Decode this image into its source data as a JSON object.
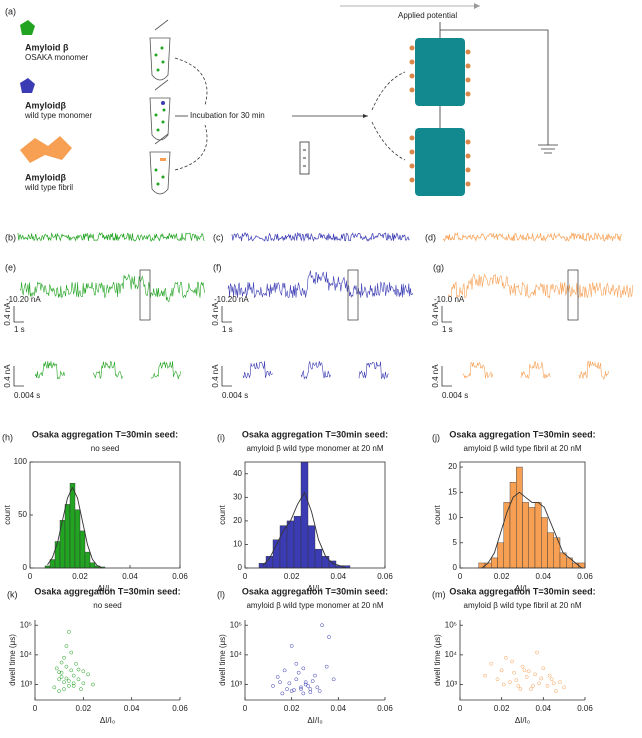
{
  "schematic": {
    "label": "(a)",
    "molecules": [
      {
        "name": "Amyloid β",
        "desc": "OSAKA monomer"
      },
      {
        "name": "Amyloidβ",
        "desc": "wild type monomer"
      },
      {
        "name": "Amyloidβ",
        "desc": "wild type fibril"
      }
    ],
    "incubation": "Incubation for 30 min",
    "potential": "Applied potential"
  },
  "traces": [
    {
      "label": "(b)",
      "color": "#22a322"
    },
    {
      "label": "(c)",
      "color": "#3b3bb3"
    },
    {
      "label": "(d)",
      "color": "#f7a054"
    }
  ],
  "events": [
    {
      "label": "(e)",
      "color": "#22a322",
      "baseline": "-10.20 nA",
      "current_scale": "0.4 nA",
      "time_scale": "1 s",
      "zoom_current_scale": "0.4 nA",
      "zoom_time_scale": "0.004 s"
    },
    {
      "label": "(f)",
      "color": "#3b3bb3",
      "baseline": "-10.20 nA",
      "current_scale": "0.4 nA",
      "time_scale": "1 s",
      "zoom_current_scale": "0.4 nA",
      "zoom_time_scale": "0.004 s"
    },
    {
      "label": "(g)",
      "color": "#f7a054",
      "baseline": "-10.0 nA",
      "current_scale": "0.4 nA",
      "time_scale": "1 s",
      "zoom_current_scale": "0.4 nA",
      "zoom_time_scale": "0.004 s"
    }
  ],
  "chart_data": [
    {
      "type": "histogram",
      "label": "(h)",
      "title": "Osaka aggregation T=30min seed:",
      "subtitle": "no seed",
      "x_label": "ΔI/I₀",
      "y_label": "count",
      "color": "#22a322",
      "bins": [
        0.006,
        0.008,
        0.01,
        0.012,
        0.014,
        0.016,
        0.018,
        0.02,
        0.022,
        0.024,
        0.026,
        0.028,
        0.03
      ],
      "counts": [
        2,
        8,
        25,
        45,
        60,
        80,
        55,
        35,
        15,
        5,
        2,
        1
      ],
      "fit": [
        3,
        10,
        24,
        45,
        66,
        76,
        66,
        44,
        22,
        8,
        2,
        0
      ],
      "xlim": [
        0,
        0.06
      ],
      "xticks": [
        0,
        0.02,
        0.04,
        0.06
      ],
      "ylim": [
        0,
        100
      ],
      "yticks": [
        0,
        50,
        100
      ]
    },
    {
      "type": "histogram",
      "label": "(i)",
      "title": "Osaka aggregation T=30min seed:",
      "subtitle": "amyloid β wild type monomer at 20 nM",
      "x_label": "ΔI/I₀",
      "y_label": "count",
      "color": "#3b3bb3",
      "bins": [
        0.006,
        0.009,
        0.012,
        0.015,
        0.018,
        0.021,
        0.024,
        0.027,
        0.03,
        0.033,
        0.036,
        0.039,
        0.042,
        0.045
      ],
      "counts": [
        2,
        5,
        12,
        18,
        20,
        22,
        45,
        18,
        8,
        5,
        3,
        1,
        1
      ],
      "fit": [
        1,
        4,
        10,
        16,
        20,
        27,
        32,
        24,
        12,
        5,
        2,
        1,
        0
      ],
      "xlim": [
        0,
        0.06
      ],
      "xticks": [
        0,
        0.02,
        0.04,
        0.06
      ],
      "ylim": [
        0,
        45
      ],
      "yticks": [
        0,
        10,
        20,
        30,
        40
      ]
    },
    {
      "type": "histogram",
      "label": "(j)",
      "title": "Osaka aggregation T=30min seed:",
      "subtitle": "amyloid β wild type fibril at 20 nM",
      "x_label": "ΔI/I₀",
      "y_label": "count",
      "color": "#f7a054",
      "bins": [
        0.009,
        0.012,
        0.015,
        0.018,
        0.021,
        0.024,
        0.027,
        0.03,
        0.033,
        0.036,
        0.039,
        0.042,
        0.045,
        0.048,
        0.051,
        0.054,
        0.057,
        0.06
      ],
      "counts": [
        1,
        1,
        2,
        5,
        13,
        17,
        20,
        13,
        12,
        13,
        10,
        7,
        6,
        3,
        2,
        1,
        1
      ],
      "fit": [
        0,
        1,
        3,
        7,
        11,
        14,
        15,
        14,
        13,
        13,
        12,
        9,
        6,
        3,
        2,
        1,
        0
      ],
      "xlim": [
        0,
        0.06
      ],
      "xticks": [
        0,
        0.02,
        0.04,
        0.06
      ],
      "ylim": [
        0,
        21
      ],
      "yticks": [
        0,
        5,
        10,
        15,
        20
      ]
    },
    {
      "type": "scatter",
      "label": "(k)",
      "title": "Osaka aggregation T=30min seed:",
      "subtitle": "no seed",
      "x_label": "ΔI/I₀",
      "y_label": "dwell time (μs)",
      "color": "#22a322",
      "log_y": true,
      "x": [
        0.008,
        0.01,
        0.011,
        0.012,
        0.013,
        0.014,
        0.015,
        0.016,
        0.012,
        0.01,
        0.018,
        0.02,
        0.009,
        0.013,
        0.017,
        0.011,
        0.014,
        0.019,
        0.022,
        0.015,
        0.012,
        0.016,
        0.01,
        0.013,
        0.024,
        0.018,
        0.014,
        0.011,
        0.02,
        0.016
      ],
      "y": [
        800,
        1500,
        2500,
        1200,
        4000,
        900,
        3000,
        2000,
        8000,
        600,
        1500,
        1100,
        3500,
        20000,
        5000,
        1800,
        1300,
        700,
        2200,
        12000,
        700,
        900,
        2600,
        1600,
        1000,
        3200,
        60000,
        5500,
        2800,
        1100
      ],
      "xlim": [
        0,
        0.06
      ],
      "xticks": [
        0,
        0.02,
        0.04,
        0.06
      ],
      "ylim": [
        300,
        150000
      ],
      "yticks": [
        {
          "value": 1000,
          "label": "10³"
        },
        {
          "value": 10000,
          "label": "10⁴"
        },
        {
          "value": 100000,
          "label": "10⁵"
        }
      ]
    },
    {
      "type": "scatter",
      "label": "(l)",
      "title": "Osaka aggregation T=30min seed:",
      "subtitle": "amyloid β wild type monomer at 20 nM",
      "x_label": "ΔI/I₀",
      "y_label": "dwell time (μs)",
      "color": "#3b3bb3",
      "log_y": true,
      "x": [
        0.012,
        0.015,
        0.018,
        0.02,
        0.022,
        0.024,
        0.025,
        0.026,
        0.028,
        0.03,
        0.017,
        0.019,
        0.021,
        0.023,
        0.027,
        0.029,
        0.032,
        0.035,
        0.014,
        0.016,
        0.022,
        0.024,
        0.026,
        0.031,
        0.033,
        0.02,
        0.025,
        0.028,
        0.038,
        0.036
      ],
      "y": [
        900,
        1200,
        700,
        600,
        1500,
        800,
        500,
        1000,
        700,
        2000,
        3000,
        1100,
        650,
        2500,
        900,
        1300,
        600,
        4000,
        1800,
        500,
        5000,
        700,
        1200,
        800,
        100000,
        20000,
        3500,
        550,
        1500,
        40000
      ],
      "xlim": [
        0,
        0.06
      ],
      "xticks": [
        0,
        0.02,
        0.04,
        0.06
      ],
      "ylim": [
        300,
        150000
      ],
      "yticks": [
        {
          "value": 1000,
          "label": "10³"
        },
        {
          "value": 10000,
          "label": "10⁴"
        },
        {
          "value": 100000,
          "label": "10⁵"
        }
      ]
    },
    {
      "type": "scatter",
      "label": "(m)",
      "title": "Osaka aggregation T=30min seed:",
      "subtitle": "amyloid β wild type fibril at 20 nM",
      "x_label": "ΔI/I₀",
      "y_label": "dwell time (μs)",
      "color": "#f7a054",
      "log_y": true,
      "x": [
        0.012,
        0.015,
        0.018,
        0.02,
        0.022,
        0.024,
        0.026,
        0.028,
        0.03,
        0.032,
        0.034,
        0.036,
        0.038,
        0.04,
        0.042,
        0.044,
        0.046,
        0.048,
        0.05,
        0.025,
        0.027,
        0.033,
        0.035,
        0.039,
        0.043,
        0.021,
        0.029,
        0.037,
        0.045,
        0.031
      ],
      "y": [
        2000,
        5000,
        1500,
        3000,
        8000,
        1200,
        2500,
        900,
        4000,
        1800,
        700,
        2200,
        1100,
        3500,
        900,
        1500,
        600,
        1200,
        800,
        6000,
        1400,
        2800,
        900,
        1600,
        2000,
        1000,
        700,
        12000,
        1100,
        3000
      ],
      "xlim": [
        0,
        0.06
      ],
      "xticks": [
        0,
        0.02,
        0.04,
        0.06
      ],
      "ylim": [
        300,
        150000
      ],
      "yticks": [
        {
          "value": 1000,
          "label": "10³"
        },
        {
          "value": 10000,
          "label": "10⁴"
        },
        {
          "value": 100000,
          "label": "10⁵"
        }
      ]
    }
  ]
}
